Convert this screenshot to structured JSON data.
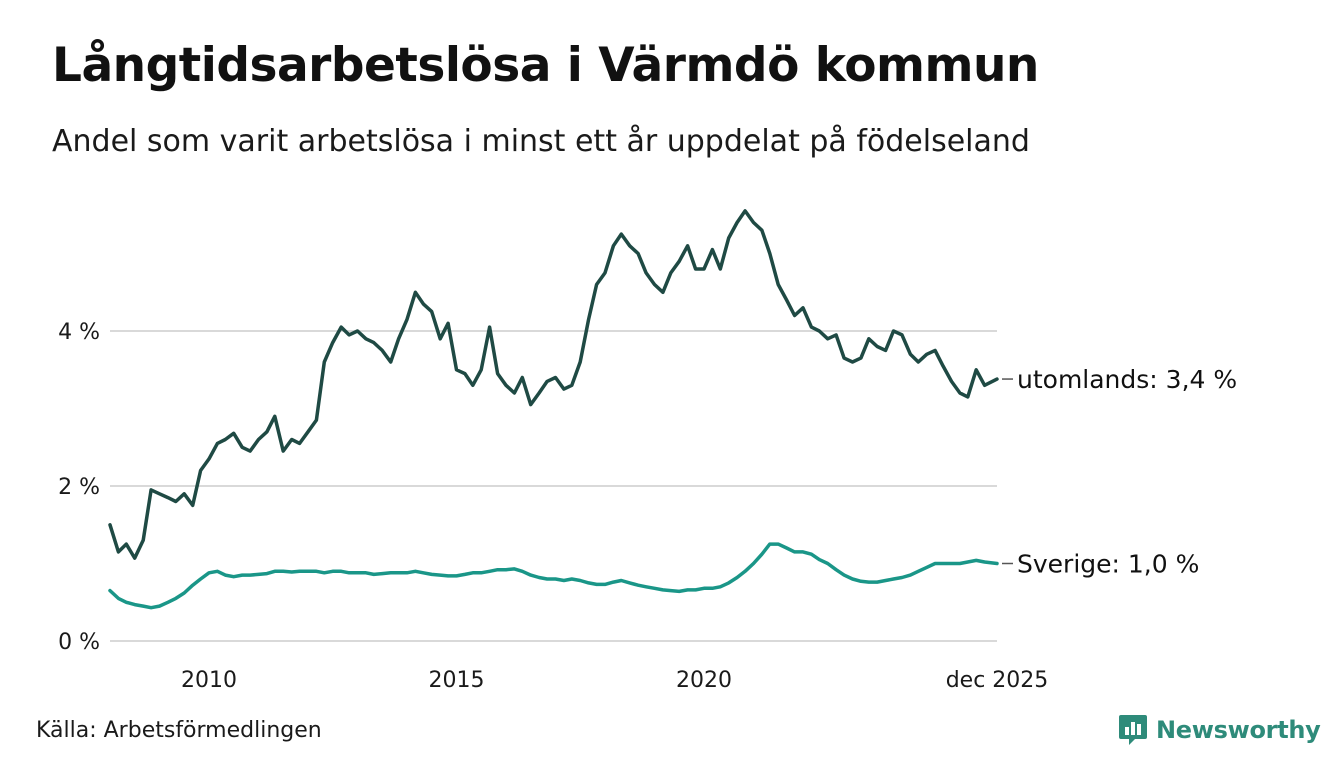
{
  "header": {
    "title": "Långtidsarbetslösa i Värmdö kommun",
    "subtitle": "Andel som varit arbetslösa i minst ett år uppdelat på födelseland"
  },
  "footer": {
    "source": "Källa: Arbetsförmedlingen",
    "brand": "Newsworthy"
  },
  "colors": {
    "utomlands": "#1f4a44",
    "sverige": "#1a9688",
    "grid": "#d9d9d9",
    "brand": "#2e8b7a"
  },
  "chart_data": {
    "type": "line",
    "title": "Långtidsarbetslösa i Värmdö kommun",
    "xlabel": "",
    "ylabel": "",
    "x_range": [
      2008.0,
      2025.92
    ],
    "ylim": [
      0,
      5.6
    ],
    "y_ticks": [
      {
        "value": 0,
        "label": "0 %"
      },
      {
        "value": 2,
        "label": "2 %"
      },
      {
        "value": 4,
        "label": "4 %"
      }
    ],
    "x_ticks": [
      {
        "value": 2010,
        "label": "2010"
      },
      {
        "value": 2015,
        "label": "2015"
      },
      {
        "value": 2020,
        "label": "2020"
      },
      {
        "value": 2025.92,
        "label": "dec 2025"
      }
    ],
    "series": [
      {
        "name": "utomlands",
        "end_label": "utomlands: 3,4 %",
        "points": [
          [
            2008.0,
            1.5
          ],
          [
            2008.17,
            1.15
          ],
          [
            2008.33,
            1.25
          ],
          [
            2008.5,
            1.07
          ],
          [
            2008.67,
            1.3
          ],
          [
            2008.83,
            1.95
          ],
          [
            2009.0,
            1.9
          ],
          [
            2009.17,
            1.85
          ],
          [
            2009.33,
            1.8
          ],
          [
            2009.5,
            1.9
          ],
          [
            2009.67,
            1.75
          ],
          [
            2009.83,
            2.2
          ],
          [
            2010.0,
            2.35
          ],
          [
            2010.17,
            2.55
          ],
          [
            2010.33,
            2.6
          ],
          [
            2010.5,
            2.68
          ],
          [
            2010.67,
            2.5
          ],
          [
            2010.83,
            2.45
          ],
          [
            2011.0,
            2.6
          ],
          [
            2011.17,
            2.7
          ],
          [
            2011.33,
            2.9
          ],
          [
            2011.5,
            2.45
          ],
          [
            2011.67,
            2.6
          ],
          [
            2011.83,
            2.55
          ],
          [
            2012.0,
            2.7
          ],
          [
            2012.17,
            2.85
          ],
          [
            2012.33,
            3.6
          ],
          [
            2012.5,
            3.85
          ],
          [
            2012.67,
            4.05
          ],
          [
            2012.83,
            3.95
          ],
          [
            2013.0,
            4.0
          ],
          [
            2013.17,
            3.9
          ],
          [
            2013.33,
            3.85
          ],
          [
            2013.5,
            3.75
          ],
          [
            2013.67,
            3.6
          ],
          [
            2013.83,
            3.9
          ],
          [
            2014.0,
            4.15
          ],
          [
            2014.17,
            4.5
          ],
          [
            2014.33,
            4.35
          ],
          [
            2014.5,
            4.25
          ],
          [
            2014.67,
            3.9
          ],
          [
            2014.83,
            4.1
          ],
          [
            2015.0,
            3.5
          ],
          [
            2015.17,
            3.45
          ],
          [
            2015.33,
            3.3
          ],
          [
            2015.5,
            3.5
          ],
          [
            2015.67,
            4.05
          ],
          [
            2015.83,
            3.45
          ],
          [
            2016.0,
            3.3
          ],
          [
            2016.17,
            3.2
          ],
          [
            2016.33,
            3.4
          ],
          [
            2016.5,
            3.05
          ],
          [
            2016.67,
            3.2
          ],
          [
            2016.83,
            3.35
          ],
          [
            2017.0,
            3.4
          ],
          [
            2017.17,
            3.25
          ],
          [
            2017.33,
            3.3
          ],
          [
            2017.5,
            3.6
          ],
          [
            2017.67,
            4.15
          ],
          [
            2017.83,
            4.6
          ],
          [
            2018.0,
            4.75
          ],
          [
            2018.17,
            5.1
          ],
          [
            2018.33,
            5.25
          ],
          [
            2018.5,
            5.1
          ],
          [
            2018.67,
            5.0
          ],
          [
            2018.83,
            4.75
          ],
          [
            2019.0,
            4.6
          ],
          [
            2019.17,
            4.5
          ],
          [
            2019.33,
            4.75
          ],
          [
            2019.5,
            4.9
          ],
          [
            2019.67,
            5.1
          ],
          [
            2019.83,
            4.8
          ],
          [
            2020.0,
            4.8
          ],
          [
            2020.17,
            5.05
          ],
          [
            2020.33,
            4.8
          ],
          [
            2020.5,
            5.2
          ],
          [
            2020.67,
            5.4
          ],
          [
            2020.83,
            5.55
          ],
          [
            2021.0,
            5.4
          ],
          [
            2021.17,
            5.3
          ],
          [
            2021.33,
            5.0
          ],
          [
            2021.5,
            4.6
          ],
          [
            2021.67,
            4.4
          ],
          [
            2021.83,
            4.2
          ],
          [
            2022.0,
            4.3
          ],
          [
            2022.17,
            4.05
          ],
          [
            2022.33,
            4.0
          ],
          [
            2022.5,
            3.9
          ],
          [
            2022.67,
            3.95
          ],
          [
            2022.83,
            3.65
          ],
          [
            2023.0,
            3.6
          ],
          [
            2023.17,
            3.65
          ],
          [
            2023.33,
            3.9
          ],
          [
            2023.5,
            3.8
          ],
          [
            2023.67,
            3.75
          ],
          [
            2023.83,
            4.0
          ],
          [
            2024.0,
            3.95
          ],
          [
            2024.17,
            3.7
          ],
          [
            2024.33,
            3.6
          ],
          [
            2024.5,
            3.7
          ],
          [
            2024.67,
            3.75
          ],
          [
            2024.83,
            3.55
          ],
          [
            2025.0,
            3.35
          ],
          [
            2025.17,
            3.2
          ],
          [
            2025.33,
            3.15
          ],
          [
            2025.5,
            3.5
          ],
          [
            2025.67,
            3.3
          ],
          [
            2025.92,
            3.38
          ]
        ]
      },
      {
        "name": "Sverige",
        "end_label": "Sverige: 1,0 %",
        "points": [
          [
            2008.0,
            0.65
          ],
          [
            2008.17,
            0.55
          ],
          [
            2008.33,
            0.5
          ],
          [
            2008.5,
            0.47
          ],
          [
            2008.67,
            0.45
          ],
          [
            2008.83,
            0.43
          ],
          [
            2009.0,
            0.45
          ],
          [
            2009.17,
            0.5
          ],
          [
            2009.33,
            0.55
          ],
          [
            2009.5,
            0.62
          ],
          [
            2009.67,
            0.72
          ],
          [
            2009.83,
            0.8
          ],
          [
            2010.0,
            0.88
          ],
          [
            2010.17,
            0.9
          ],
          [
            2010.33,
            0.85
          ],
          [
            2010.5,
            0.83
          ],
          [
            2010.67,
            0.85
          ],
          [
            2010.83,
            0.85
          ],
          [
            2011.0,
            0.86
          ],
          [
            2011.17,
            0.87
          ],
          [
            2011.33,
            0.9
          ],
          [
            2011.5,
            0.9
          ],
          [
            2011.67,
            0.89
          ],
          [
            2011.83,
            0.9
          ],
          [
            2012.0,
            0.9
          ],
          [
            2012.17,
            0.9
          ],
          [
            2012.33,
            0.88
          ],
          [
            2012.5,
            0.9
          ],
          [
            2012.67,
            0.9
          ],
          [
            2012.83,
            0.88
          ],
          [
            2013.0,
            0.88
          ],
          [
            2013.17,
            0.88
          ],
          [
            2013.33,
            0.86
          ],
          [
            2013.5,
            0.87
          ],
          [
            2013.67,
            0.88
          ],
          [
            2013.83,
            0.88
          ],
          [
            2014.0,
            0.88
          ],
          [
            2014.17,
            0.9
          ],
          [
            2014.33,
            0.88
          ],
          [
            2014.5,
            0.86
          ],
          [
            2014.67,
            0.85
          ],
          [
            2014.83,
            0.84
          ],
          [
            2015.0,
            0.84
          ],
          [
            2015.17,
            0.86
          ],
          [
            2015.33,
            0.88
          ],
          [
            2015.5,
            0.88
          ],
          [
            2015.67,
            0.9
          ],
          [
            2015.83,
            0.92
          ],
          [
            2016.0,
            0.92
          ],
          [
            2016.17,
            0.93
          ],
          [
            2016.33,
            0.9
          ],
          [
            2016.5,
            0.85
          ],
          [
            2016.67,
            0.82
          ],
          [
            2016.83,
            0.8
          ],
          [
            2017.0,
            0.8
          ],
          [
            2017.17,
            0.78
          ],
          [
            2017.33,
            0.8
          ],
          [
            2017.5,
            0.78
          ],
          [
            2017.67,
            0.75
          ],
          [
            2017.83,
            0.73
          ],
          [
            2018.0,
            0.73
          ],
          [
            2018.17,
            0.76
          ],
          [
            2018.33,
            0.78
          ],
          [
            2018.5,
            0.75
          ],
          [
            2018.67,
            0.72
          ],
          [
            2018.83,
            0.7
          ],
          [
            2019.0,
            0.68
          ],
          [
            2019.17,
            0.66
          ],
          [
            2019.33,
            0.65
          ],
          [
            2019.5,
            0.64
          ],
          [
            2019.67,
            0.66
          ],
          [
            2019.83,
            0.66
          ],
          [
            2020.0,
            0.68
          ],
          [
            2020.17,
            0.68
          ],
          [
            2020.33,
            0.7
          ],
          [
            2020.5,
            0.75
          ],
          [
            2020.67,
            0.82
          ],
          [
            2020.83,
            0.9
          ],
          [
            2021.0,
            1.0
          ],
          [
            2021.17,
            1.12
          ],
          [
            2021.33,
            1.25
          ],
          [
            2021.5,
            1.25
          ],
          [
            2021.67,
            1.2
          ],
          [
            2021.83,
            1.15
          ],
          [
            2022.0,
            1.15
          ],
          [
            2022.17,
            1.12
          ],
          [
            2022.33,
            1.05
          ],
          [
            2022.5,
            1.0
          ],
          [
            2022.67,
            0.92
          ],
          [
            2022.83,
            0.85
          ],
          [
            2023.0,
            0.8
          ],
          [
            2023.17,
            0.77
          ],
          [
            2023.33,
            0.76
          ],
          [
            2023.5,
            0.76
          ],
          [
            2023.67,
            0.78
          ],
          [
            2023.83,
            0.8
          ],
          [
            2024.0,
            0.82
          ],
          [
            2024.17,
            0.85
          ],
          [
            2024.33,
            0.9
          ],
          [
            2024.5,
            0.95
          ],
          [
            2024.67,
            1.0
          ],
          [
            2024.83,
            1.0
          ],
          [
            2025.0,
            1.0
          ],
          [
            2025.17,
            1.0
          ],
          [
            2025.33,
            1.02
          ],
          [
            2025.5,
            1.04
          ],
          [
            2025.67,
            1.02
          ],
          [
            2025.92,
            1.0
          ]
        ]
      }
    ]
  }
}
